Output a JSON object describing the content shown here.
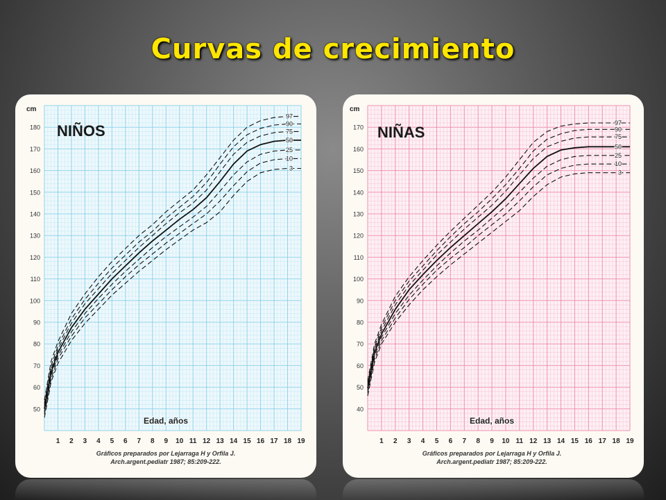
{
  "slide": {
    "title": "Curvas de crecimiento"
  },
  "chart_data": [
    {
      "type": "line",
      "title": "NIÑOS",
      "ylabel": "cm",
      "xlabel": "Edad, años",
      "credit": "Gráficos preparados por Lejarraga H y Orfila J.",
      "citation": "Arch.argent.pediatr 1987; 85:209-222.",
      "xlim": [
        0,
        19
      ],
      "ylim": [
        40,
        190
      ],
      "xticks": [
        1,
        2,
        3,
        4,
        5,
        6,
        7,
        8,
        9,
        10,
        11,
        12,
        13,
        14,
        15,
        16,
        17,
        18,
        19
      ],
      "yticks": [
        50,
        60,
        70,
        80,
        90,
        100,
        110,
        120,
        130,
        140,
        150,
        160,
        170,
        180
      ],
      "x": [
        0,
        0.5,
        1,
        2,
        3,
        4,
        5,
        6,
        7,
        8,
        9,
        10,
        11,
        12,
        13,
        14,
        15,
        16,
        17,
        18,
        19
      ],
      "colors": {
        "grid": "#8fd3ea",
        "grid_minor": "#c8ecf6",
        "background": "#eef8fc",
        "line": "#111111"
      },
      "series": [
        {
          "name": "97",
          "values": [
            54,
            72,
            81,
            94,
            103,
            111,
            118,
            124,
            130,
            135,
            141,
            146,
            151,
            158,
            166,
            174,
            180,
            183,
            184.5,
            185,
            185
          ]
        },
        {
          "name": "90",
          "values": [
            52.5,
            70,
            79,
            91.5,
            100.5,
            108,
            115,
            121,
            127,
            132,
            138,
            143,
            148,
            154.5,
            163,
            171,
            176.5,
            179.5,
            181,
            181.5,
            181.5
          ]
        },
        {
          "name": "75",
          "values": [
            51.5,
            68.5,
            77.5,
            89.5,
            98.5,
            105.5,
            112.5,
            118.5,
            124.5,
            130,
            135.5,
            140.5,
            145,
            151,
            159.5,
            167.5,
            173,
            176,
            177.5,
            178,
            178
          ]
        },
        {
          "name": "50",
          "values": [
            50,
            67,
            76,
            87.5,
            96,
            103,
            110,
            116,
            122,
            127.5,
            132.5,
            137.5,
            142,
            147.5,
            155,
            163,
            169,
            172,
            173.5,
            174,
            174
          ]
        },
        {
          "name": "25",
          "values": [
            48.5,
            65.5,
            74.5,
            85.5,
            94,
            101,
            107.5,
            113.5,
            119,
            124.5,
            129.5,
            134,
            138.5,
            143.5,
            150.5,
            158,
            164,
            167.5,
            169,
            169.5,
            169.5
          ]
        },
        {
          "name": "10",
          "values": [
            47.5,
            64,
            73,
            83.5,
            92,
            98.5,
            105,
            111,
            116.5,
            121.5,
            126.5,
            131,
            135.5,
            140,
            146,
            153,
            159.5,
            163.5,
            165,
            165.5,
            165.5
          ]
        },
        {
          "name": "3",
          "values": [
            46,
            62.5,
            71,
            81.5,
            89.5,
            96,
            102.5,
            108,
            113.5,
            118.5,
            123.5,
            128,
            132.5,
            136,
            141,
            148.5,
            155,
            159,
            160.5,
            161,
            161
          ]
        }
      ]
    },
    {
      "type": "line",
      "title": "NIÑAS",
      "ylabel": "cm",
      "xlabel": "Edad, años",
      "credit": "Gráficos preparados por Lejarraga H y Orfila J.",
      "citation": "Arch.argent.pediatr 1987; 85:209-222.",
      "xlim": [
        0,
        19
      ],
      "ylim": [
        30,
        180
      ],
      "xticks": [
        1,
        2,
        3,
        4,
        5,
        6,
        7,
        8,
        9,
        10,
        11,
        12,
        13,
        14,
        15,
        16,
        17,
        18,
        19
      ],
      "yticks": [
        40,
        50,
        60,
        70,
        80,
        90,
        100,
        110,
        120,
        130,
        140,
        150,
        160,
        170
      ],
      "x": [
        0,
        0.5,
        1,
        2,
        3,
        4,
        5,
        6,
        7,
        8,
        9,
        10,
        11,
        12,
        13,
        14,
        15,
        16,
        17,
        18,
        19
      ],
      "colors": {
        "grid": "#ef8fb0",
        "grid_minor": "#f8c9d9",
        "background": "#fdf0f4",
        "line": "#111111"
      },
      "series": [
        {
          "name": "97",
          "values": [
            53,
            70,
            79,
            92,
            101,
            108.5,
            115.5,
            122,
            128,
            134,
            140,
            147,
            155,
            163,
            168,
            170.5,
            171.5,
            172,
            172,
            172,
            172
          ]
        },
        {
          "name": "90",
          "values": [
            52,
            68.5,
            77.5,
            90,
            99,
            106,
            113,
            119.5,
            125.5,
            131,
            137,
            143.5,
            151,
            159,
            164.5,
            167,
            168.5,
            169,
            169,
            169,
            169
          ]
        },
        {
          "name": "75",
          "values": [
            51,
            67.5,
            76,
            88,
            97,
            104,
            111,
            117,
            123,
            128.5,
            134,
            140.5,
            148,
            155.5,
            161,
            163.5,
            165,
            165.5,
            165.5,
            165.5,
            165.5
          ]
        },
        {
          "name": "50",
          "values": [
            49.5,
            66,
            74.5,
            86,
            95,
            102,
            108.5,
            114.5,
            120,
            125.5,
            131,
            137,
            144,
            151,
            156.5,
            159.5,
            160.5,
            161,
            161,
            161,
            161
          ]
        },
        {
          "name": "25",
          "values": [
            48.5,
            64.5,
            73,
            84,
            92.5,
            99.5,
            106,
            112,
            117.5,
            122.5,
            128,
            133.5,
            140,
            146.5,
            152,
            155,
            156.5,
            157,
            157,
            157,
            157
          ]
        },
        {
          "name": "10",
          "values": [
            47.5,
            63,
            71.5,
            82,
            90.5,
            97.5,
            104,
            109.5,
            114.5,
            120,
            125,
            130,
            136,
            142.5,
            148,
            151,
            152.5,
            153,
            153,
            153,
            153
          ]
        },
        {
          "name": "3",
          "values": [
            46,
            61.5,
            70,
            80,
            88,
            95,
            101,
            106.5,
            111.5,
            116.5,
            121.5,
            126.5,
            131.5,
            138,
            143.5,
            147,
            148.5,
            149,
            149,
            149,
            149
          ]
        }
      ]
    }
  ]
}
